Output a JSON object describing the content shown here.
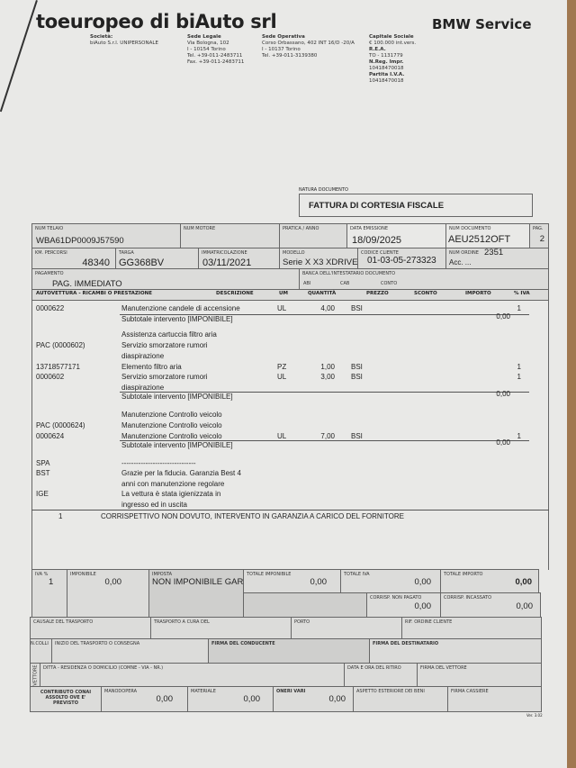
{
  "header": {
    "company": "toeuropeo di biAuto srl",
    "brand": "BMW Service",
    "societa_label": "Società:",
    "societa": "biAuto S.r.l. UNIPERSONALE",
    "sede_legale_label": "Sede Legale",
    "sede_legale": [
      "Via Bologna, 102",
      "I - 10154 Torino",
      "Tel. +39-011-2483711",
      "Fax. +39-011-2483711"
    ],
    "sede_operativa_label": "Sede Operativa",
    "sede_operativa": [
      "Corso Orbassano, 402 INT 16/D -20/A",
      "I - 10137 Torino",
      "Tel. +39-011-3139380"
    ],
    "capitale_label": "Capitale Sociale",
    "capitale": [
      "€ 100.000 int.vers."
    ],
    "rea_label": "R.E.A.",
    "rea": "TO - 1131779",
    "nreg_label": "N.Reg. Impr.",
    "nreg": "10418470018",
    "piva_label": "Partita I.V.A.",
    "piva": "10418470018"
  },
  "doc": {
    "natura_label": "NATURA DOCUMENTO",
    "natura": "FATTURA DI CORTESIA FISCALE"
  },
  "fields": {
    "telaio_label": "NUM TELAIO",
    "telaio": "WBA61DP0009J57590",
    "motore_label": "NUM MOTORE",
    "pratica_label": "PRATICA / ANNO",
    "data_label": "DATA EMISSIONE",
    "data": "18/09/2025",
    "numdoc_label": "NUM DOCUMENTO",
    "numdoc": "AEU2512OFT",
    "pag_label": "PAG.",
    "pag": "2",
    "km_label": "KM. PERCORSI",
    "km": "48340",
    "targa_label": "TARGA",
    "targa": "GG368BV",
    "immatr_label": "IMMATRICOLAZIONE",
    "immatr": "03/11/2021",
    "modello_label": "MODELLO",
    "modello": "Serie X X3 XDRIVE",
    "cliente_label": "CODICE CLIENTE",
    "cliente": "01-03-05-273323",
    "ordine_label": "NUM ORDINE",
    "ordine": "2351",
    "acc": "Acc.  ...",
    "pagamento_label": "PAGAMENTO",
    "pagamento": "PAG. IMMEDIATO",
    "banca_label": "BANCA DELL'INTESTATARIO DOCUMENTO",
    "abi": "ABI",
    "cab": "CAB",
    "conto": "CONTO"
  },
  "columns": [
    "AUTOVETTURA - RICAMBI O PRESTAZIONE",
    "DESCRIZIONE",
    "UM",
    "QUANTITÀ",
    "PREZZO",
    "SCONTO",
    "IMPORTO",
    "% IVA"
  ],
  "lines": [
    {
      "code": "0000622",
      "desc": "Manutenzione candele di accensione",
      "um": "UL",
      "qty": "4,00",
      "prezzo": "BSI",
      "iva": "1"
    },
    {
      "desc": "Subtotale intervento [IMPONIBILE]",
      "importo": "0,00",
      "sub": true
    },
    {
      "desc": "Assistenza cartuccia filtro aria"
    },
    {
      "code": "PAC (0000602)",
      "desc": "Servizio smorzatore rumori"
    },
    {
      "desc": "diaspirazione"
    },
    {
      "code": "13718577171",
      "desc": "Elemento filtro aria",
      "um": "PZ",
      "qty": "1,00",
      "prezzo": "BSI",
      "iva": "1"
    },
    {
      "code": "0000602",
      "desc": "Servizio smorzatore rumori",
      "um": "UL",
      "qty": "3,00",
      "prezzo": "BSI",
      "iva": "1"
    },
    {
      "desc": "diaspirazione"
    },
    {
      "desc": "Subtotale intervento [IMPONIBILE]",
      "importo": "0,00",
      "sub": true
    },
    {
      "desc": "Manutenzione Controllo veicolo"
    },
    {
      "code": "PAC (0000624)",
      "desc": "Manutenzione Controllo veicolo"
    },
    {
      "code": "0000624",
      "desc": "Manutenzione Controllo veicolo",
      "um": "UL",
      "qty": "7,00",
      "prezzo": "BSI",
      "iva": "1"
    },
    {
      "desc": "Subtotale intervento [IMPONIBILE]",
      "importo": "0,00",
      "sub": true
    },
    {
      "code": "SPA",
      "desc": "-------------------------------"
    },
    {
      "code": "BST",
      "desc": "Grazie per la fiducia. Garanzia Best 4"
    },
    {
      "desc": "anni con manutenzione regolare"
    },
    {
      "code": "IGE",
      "desc": "La vettura è stata igienizzata in"
    },
    {
      "desc": "ingresso ed in uscita"
    }
  ],
  "footnote": {
    "num": "1",
    "text": "CORRISPETTIVO NON DOVUTO, INTERVENTO IN GARANZIA A CARICO DEL FORNITORE"
  },
  "totals": {
    "iva_label": "IVA %",
    "iva": "1",
    "imponibile_label": "IMPONIBILE",
    "imponibile": "0,00",
    "imposta_label": "IMPOSTA",
    "imposta": "NON IMPONIBILE GAR.",
    "tot_imp_label": "TOTALE IMPONIBILE",
    "tot_imp": "0,00",
    "tot_iva_label": "TOTALE IVA",
    "tot_iva": "0,00",
    "tot_importo_label": "TOTALE IMPORTO",
    "tot_importo": "0,00",
    "non_pagato_label": "CORRISP. NON PAGATO",
    "non_pagato": "0,00",
    "incassato_label": "CORRISP. INCASSATO",
    "incassato": "0,00"
  },
  "transport": {
    "causale": "CAUSALE DEL TRASPORTO",
    "cura": "TRASPORTO A CURA DEL",
    "porto": "PORTO",
    "rif": "RIF. ORDINE CLIENTE",
    "colli": "N.COLLI",
    "inizio": "INIZIO DEL TRASPORTO O CONSEGNA",
    "firma_cond": "FIRMA DEL CONDUCENTE",
    "firma_dest": "FIRMA DEL DESTINATARIO",
    "vettore": "VETTORE",
    "ditta": "DITTA - RESIDENZA O DOMICILIO (COMNE - VIA - NR.)",
    "data_ritiro": "DATA E ORA DEL RITIRO",
    "firma_vett": "FIRMA DEL VETTORE"
  },
  "bottom": {
    "conai": "CONTRIBUTO CONAI ASSOLTO OVE E' PREVISTO",
    "mano_label": "MANODOPERA",
    "mano": "0,00",
    "mat_label": "MATERIALE",
    "mat": "0,00",
    "oneri_label": "ONERI VARI",
    "oneri": "0,00",
    "aspetto": "ASPETTO ESTERIORE DEI BENI",
    "cassiere": "FIRMA CASSIERE",
    "ver": "Ver. 3.02"
  }
}
